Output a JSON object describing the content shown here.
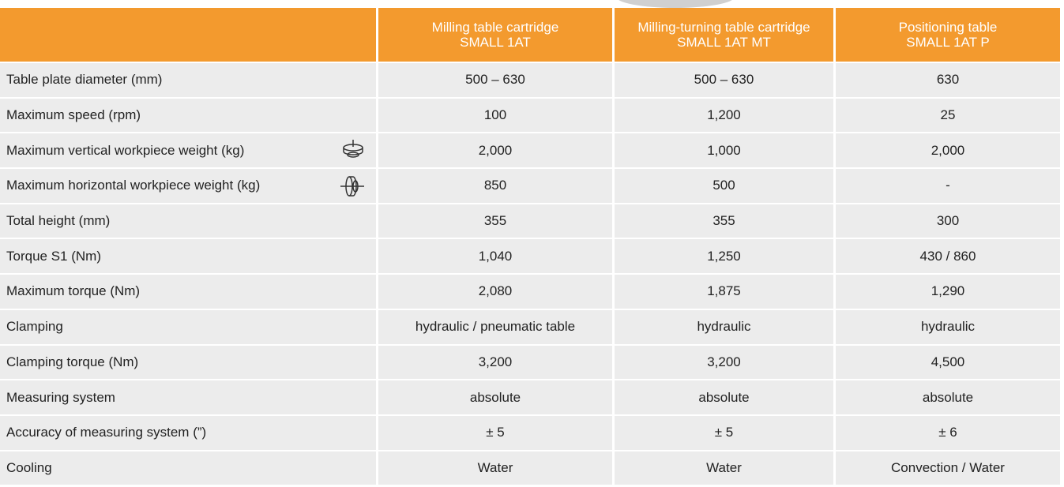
{
  "header": {
    "columns": [
      {
        "lines": [
          "Milling table cartridge",
          "SMALL 1AT"
        ]
      },
      {
        "lines": [
          "Milling-turning table cartridge",
          "SMALL 1AT MT"
        ]
      },
      {
        "lines": [
          "Positioning table",
          "SMALL 1AT P"
        ]
      }
    ]
  },
  "table": {
    "rows": [
      {
        "label": "Table plate diameter (mm)",
        "values": [
          "500 – 630",
          "500 – 630",
          "630"
        ]
      },
      {
        "label": "Maximum speed (rpm)",
        "values": [
          "100",
          "1,200",
          "25"
        ]
      },
      {
        "label": "Maximum vertical workpiece weight (kg)",
        "icon": "vertical",
        "values": [
          "2,000",
          "1,000",
          "2,000"
        ]
      },
      {
        "label": "Maximum horizontal workpiece weight (kg)",
        "icon": "horizontal",
        "values": [
          "850",
          "500",
          "-"
        ]
      },
      {
        "label": "Total height (mm)",
        "values": [
          "355",
          "355",
          "300"
        ]
      },
      {
        "label": "Torque S1 (Nm)",
        "values": [
          "1,040",
          "1,250",
          "430 / 860"
        ]
      },
      {
        "label": "Maximum torque (Nm)",
        "values": [
          "2,080",
          "1,875",
          "1,290"
        ]
      },
      {
        "label": "Clamping",
        "values": [
          "hydraulic / pneumatic table",
          "hydraulic",
          "hydraulic"
        ]
      },
      {
        "label": "Clamping torque (Nm)",
        "values": [
          "3,200",
          "3,200",
          "4,500"
        ]
      },
      {
        "label": "Measuring system",
        "values": [
          "absolute",
          "absolute",
          "absolute"
        ]
      },
      {
        "label": "Accuracy of measuring system (”)",
        "values": [
          "± 5",
          "± 5",
          "± 6"
        ]
      },
      {
        "label": "Cooling",
        "values": [
          "Water",
          "Water",
          "Convection / Water"
        ]
      }
    ]
  }
}
